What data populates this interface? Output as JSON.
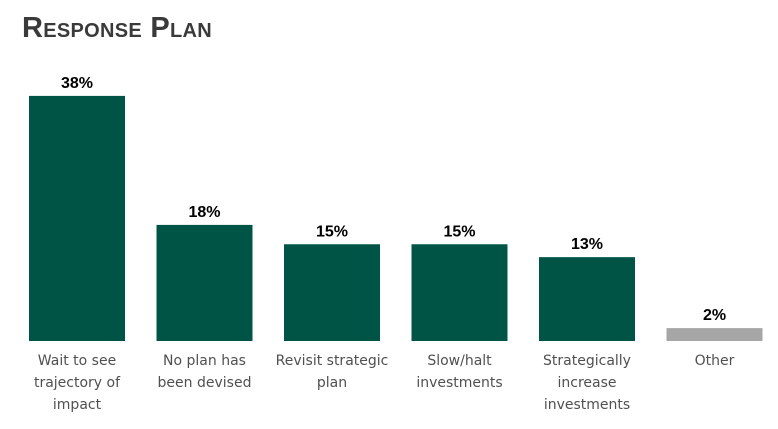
{
  "title": "Response Plan",
  "colors": {
    "primary": "#005446",
    "other": "#a6a6a6"
  },
  "chart_data": {
    "type": "bar",
    "title": "Response Plan",
    "categories": [
      [
        "Wait to see",
        "trajectory of",
        "impact"
      ],
      [
        "No plan has",
        "been devised"
      ],
      [
        "Revisit strategic",
        "plan"
      ],
      [
        "Slow/halt",
        "investments"
      ],
      [
        "Strategically",
        "increase",
        "investments"
      ],
      [
        "Other"
      ]
    ],
    "values": [
      38,
      18,
      15,
      15,
      13,
      2
    ],
    "value_labels": [
      "38%",
      "18%",
      "15%",
      "15%",
      "13%",
      "2%"
    ],
    "bar_colors": [
      "#005446",
      "#005446",
      "#005446",
      "#005446",
      "#005446",
      "#a6a6a6"
    ],
    "xlabel": "",
    "ylabel": "",
    "grid": false,
    "legend": "none"
  }
}
